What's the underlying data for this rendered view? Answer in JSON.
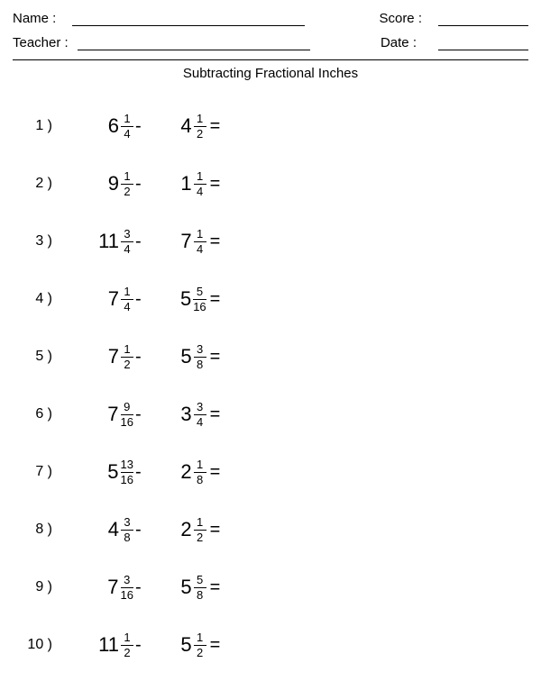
{
  "header": {
    "name_label": "Name :",
    "teacher_label": "Teacher :",
    "score_label": "Score :",
    "date_label": "Date :",
    "line_widths": {
      "name": 258,
      "teacher": 258,
      "score": 100,
      "date": 100
    }
  },
  "title": "Subtracting Fractional Inches",
  "colors": {
    "background": "#ffffff",
    "text": "#000000",
    "line": "#000000"
  },
  "typography": {
    "body_font": "Arial",
    "title_fontsize": 15,
    "header_fontsize": 15,
    "problem_number_fontsize": 16,
    "whole_fontsize": 22,
    "fraction_fontsize": 13
  },
  "problems": [
    {
      "n": "1 )",
      "a_whole": "6",
      "a_num": "1",
      "a_den": "4",
      "op": "-",
      "b_whole": "4",
      "b_num": "1",
      "b_den": "2",
      "eq": "="
    },
    {
      "n": "2 )",
      "a_whole": "9",
      "a_num": "1",
      "a_den": "2",
      "op": "-",
      "b_whole": "1",
      "b_num": "1",
      "b_den": "4",
      "eq": "="
    },
    {
      "n": "3 )",
      "a_whole": "11",
      "a_num": "3",
      "a_den": "4",
      "op": "-",
      "b_whole": "7",
      "b_num": "1",
      "b_den": "4",
      "eq": "="
    },
    {
      "n": "4 )",
      "a_whole": "7",
      "a_num": "1",
      "a_den": "4",
      "op": "-",
      "b_whole": "5",
      "b_num": "5",
      "b_den": "16",
      "eq": "="
    },
    {
      "n": "5 )",
      "a_whole": "7",
      "a_num": "1",
      "a_den": "2",
      "op": "-",
      "b_whole": "5",
      "b_num": "3",
      "b_den": "8",
      "eq": "="
    },
    {
      "n": "6 )",
      "a_whole": "7",
      "a_num": "9",
      "a_den": "16",
      "op": "-",
      "b_whole": "3",
      "b_num": "3",
      "b_den": "4",
      "eq": "="
    },
    {
      "n": "7 )",
      "a_whole": "5",
      "a_num": "13",
      "a_den": "16",
      "op": "-",
      "b_whole": "2",
      "b_num": "1",
      "b_den": "8",
      "eq": "="
    },
    {
      "n": "8 )",
      "a_whole": "4",
      "a_num": "3",
      "a_den": "8",
      "op": "-",
      "b_whole": "2",
      "b_num": "1",
      "b_den": "2",
      "eq": "="
    },
    {
      "n": "9 )",
      "a_whole": "7",
      "a_num": "3",
      "a_den": "16",
      "op": "-",
      "b_whole": "5",
      "b_num": "5",
      "b_den": "8",
      "eq": "="
    },
    {
      "n": "10 )",
      "a_whole": "11",
      "a_num": "1",
      "a_den": "2",
      "op": "-",
      "b_whole": "5",
      "b_num": "1",
      "b_den": "2",
      "eq": "="
    }
  ]
}
